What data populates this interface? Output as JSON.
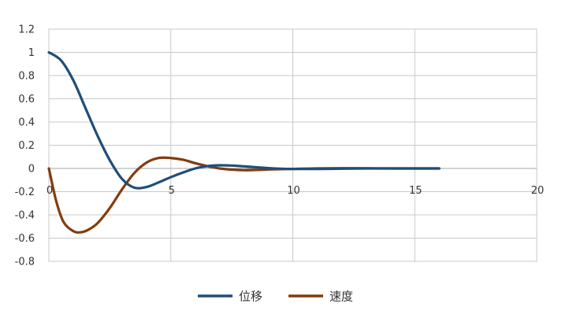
{
  "chart_data": {
    "type": "line",
    "title": "",
    "xlabel": "",
    "ylabel": "",
    "xlim": [
      0,
      20
    ],
    "ylim": [
      -0.8,
      1.2
    ],
    "x_ticks": [
      0,
      5,
      10,
      15,
      20
    ],
    "y_ticks": [
      -0.8,
      -0.6,
      -0.4,
      -0.2,
      0,
      0.2,
      0.4,
      0.6,
      0.8,
      1,
      1.2
    ],
    "x_tick_labels": [
      "0",
      "5",
      "10",
      "15",
      "20"
    ],
    "y_tick_labels": [
      "-0.8",
      "-0.6",
      "-0.4",
      "-0.2",
      "0",
      "0.2",
      "0.4",
      "0.6",
      "0.8",
      "1",
      "1.2"
    ],
    "grid": true,
    "legend": {
      "position": "bottom"
    },
    "series": [
      {
        "name": "位移",
        "color": "#1f4e79",
        "x": [
          0,
          0.5,
          1,
          1.5,
          2,
          2.5,
          3,
          3.5,
          4,
          4.5,
          5,
          5.5,
          6,
          6.5,
          7,
          7.5,
          8,
          8.5,
          9,
          9.5,
          10,
          11,
          12,
          13,
          14,
          15,
          16
        ],
        "y": [
          1.0,
          0.93,
          0.76,
          0.52,
          0.28,
          0.07,
          -0.09,
          -0.165,
          -0.16,
          -0.12,
          -0.075,
          -0.035,
          0.0,
          0.02,
          0.027,
          0.025,
          0.018,
          0.01,
          0.003,
          -0.002,
          -0.004,
          -0.004,
          -0.002,
          0.0,
          0.0,
          0.0,
          0.0
        ]
      },
      {
        "name": "速度",
        "color": "#843c0c",
        "x": [
          0,
          0.3,
          0.6,
          1,
          1.3,
          1.6,
          2,
          2.5,
          3,
          3.5,
          4,
          4.5,
          5,
          5.5,
          6,
          6.5,
          7,
          7.5,
          8,
          8.5,
          9,
          9.5,
          10,
          11,
          12,
          13,
          14,
          15,
          16
        ],
        "y": [
          0.0,
          -0.28,
          -0.46,
          -0.54,
          -0.55,
          -0.53,
          -0.47,
          -0.34,
          -0.18,
          -0.04,
          0.05,
          0.09,
          0.09,
          0.075,
          0.045,
          0.02,
          0.0,
          -0.01,
          -0.015,
          -0.013,
          -0.009,
          -0.006,
          -0.004,
          0.0,
          0.002,
          0.001,
          0.0,
          0.0,
          0.0
        ]
      }
    ]
  }
}
